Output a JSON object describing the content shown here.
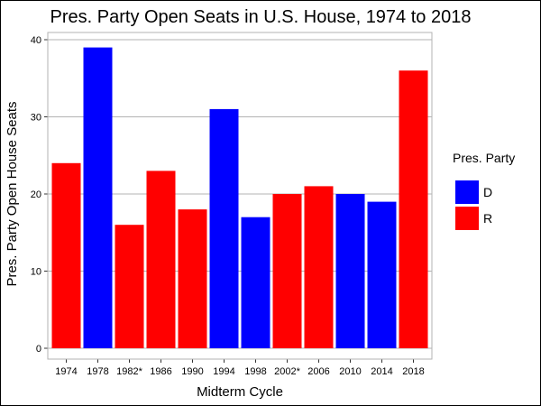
{
  "chart_data": {
    "type": "bar",
    "title": "Pres. Party Open Seats in U.S. House, 1974 to 2018",
    "xlabel": "Midterm Cycle",
    "ylabel": "Pres. Party Open House Seats",
    "ylim": [
      0,
      40
    ],
    "yticks": [
      0,
      10,
      20,
      30,
      40
    ],
    "grid": "horizontal",
    "legend_position": "right",
    "categories": [
      "1974",
      "1978",
      "1982*",
      "1986",
      "1990",
      "1994",
      "1998",
      "2002*",
      "2006",
      "2010",
      "2014",
      "2018"
    ],
    "values": [
      24,
      39,
      16,
      23,
      18,
      31,
      17,
      20,
      21,
      20,
      19,
      36
    ],
    "party": [
      "R",
      "D",
      "R",
      "R",
      "R",
      "D",
      "D",
      "R",
      "R",
      "D",
      "D",
      "R"
    ],
    "legend": {
      "title": "Pres. Party",
      "entries": [
        {
          "label": "D",
          "color": "#0000ff"
        },
        {
          "label": "R",
          "color": "#ff0000"
        }
      ]
    },
    "colors": {
      "D": "#0000ff",
      "R": "#ff0000"
    }
  }
}
